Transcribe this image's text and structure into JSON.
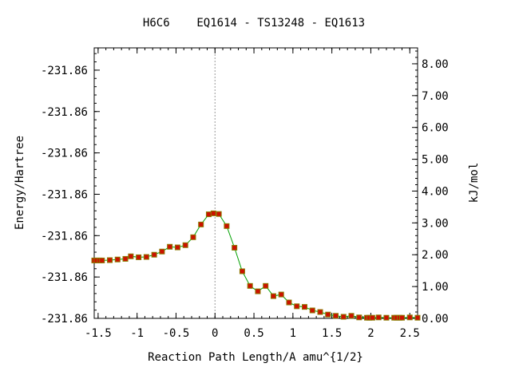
{
  "chart_data": {
    "type": "line",
    "title": "H6C6    EQ1614 - TS13248 - EQ1613",
    "xlabel": "Reaction Path Length/A amu^{1/2}",
    "ylabel_left": "Energy/Hartree",
    "ylabel_right": "kJ/mol",
    "xlim": [
      -1.55,
      2.6
    ],
    "ylim_right": [
      0,
      8.5
    ],
    "x_ticks": [
      -1.5,
      -1,
      -0.5,
      0,
      0.5,
      1,
      1.5,
      2,
      2.5
    ],
    "x_tick_labels": [
      "-1.5",
      "-1",
      "-0.5",
      "0",
      "0.5",
      "1",
      "1.5",
      "2",
      "2.5"
    ],
    "left_tick_values": [
      0,
      1.3,
      2.6,
      3.9,
      5.2,
      6.5,
      7.8
    ],
    "left_tick_labels": [
      "-231.86",
      "-231.86",
      "-231.86",
      "-231.86",
      "-231.86",
      "-231.86",
      "-231.86"
    ],
    "right_ticks": [
      0,
      1,
      2,
      3,
      4,
      5,
      6,
      7,
      8
    ],
    "right_tick_labels": [
      "0.00",
      "1.00",
      "2.00",
      "3.00",
      "4.00",
      "5.00",
      "6.00",
      "7.00",
      "8.00"
    ],
    "ts_marker_x": 0,
    "grid": false,
    "series": [
      {
        "x": [
          -1.55,
          -1.52,
          -1.48,
          -1.45,
          -1.35,
          -1.25,
          -1.15,
          -1.08,
          -0.98,
          -0.88,
          -0.78,
          -0.68,
          -0.58,
          -0.48,
          -0.38,
          -0.28,
          -0.18,
          -0.08,
          -0.02,
          0.05,
          0.15,
          0.25,
          0.35,
          0.45,
          0.55,
          0.65,
          0.75,
          0.85,
          0.95,
          1.05,
          1.15,
          1.25,
          1.35,
          1.45,
          1.55,
          1.65,
          1.75,
          1.85,
          1.95,
          1.98,
          2.02,
          2.1,
          2.2,
          2.3,
          2.33,
          2.37,
          2.4,
          2.5,
          2.6
        ],
        "y": [
          1.82,
          1.82,
          1.82,
          1.82,
          1.83,
          1.85,
          1.87,
          1.95,
          1.92,
          1.93,
          2.0,
          2.1,
          2.25,
          2.23,
          2.3,
          2.55,
          2.95,
          3.27,
          3.3,
          3.28,
          2.9,
          2.22,
          1.48,
          1.02,
          0.85,
          1.02,
          0.7,
          0.75,
          0.5,
          0.38,
          0.36,
          0.25,
          0.2,
          0.12,
          0.08,
          0.05,
          0.08,
          0.03,
          0.02,
          0.02,
          0.02,
          0.03,
          0.02,
          0.02,
          0.02,
          0.02,
          0.02,
          0.03,
          0.02
        ]
      }
    ],
    "colors": {
      "line": "#00a000",
      "marker_fill": "#cc1100",
      "marker_edge": "#8a7a00",
      "ts_line": "#888888"
    }
  }
}
